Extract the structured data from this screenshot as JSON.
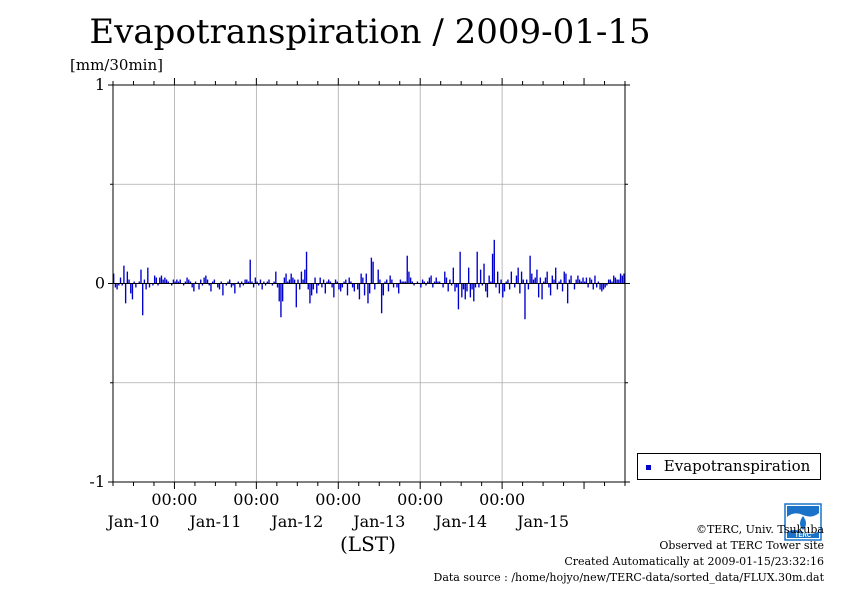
{
  "title": "Evapotranspiration / 2009-01-15",
  "unit_label": "[mm/30min]",
  "chart_data": {
    "type": "bar",
    "xlabel": "(LST)",
    "x_start": "2009-01-09T06:00",
    "interval_minutes": 30,
    "ylim": [
      -1,
      1
    ],
    "yticks": [
      "1",
      "0",
      "-1"
    ],
    "time_tick_label": "00:00",
    "day_labels": [
      "Jan-10",
      "Jan-11",
      "Jan-12",
      "Jan-13",
      "Jan-14",
      "Jan-15"
    ],
    "grid": true,
    "legend_position": "right-bottom",
    "series": [
      {
        "name": "Evapotranspiration",
        "color": "#0000cc",
        "values": [
          0.05,
          -0.02,
          -0.03,
          -0.01,
          0.03,
          -0.01,
          0.09,
          -0.1,
          0.06,
          0.02,
          -0.05,
          -0.08,
          0.01,
          -0.02,
          0.0,
          0.01,
          0.07,
          -0.16,
          0.02,
          -0.03,
          0.08,
          -0.02,
          0.0,
          -0.01,
          0.04,
          0.03,
          -0.01,
          0.03,
          0.04,
          0.02,
          0.03,
          0.02,
          0.01,
          0.0,
          -0.01,
          0.02,
          0.01,
          0.02,
          0.01,
          0.02,
          0.0,
          -0.01,
          0.01,
          0.03,
          0.02,
          0.01,
          -0.02,
          -0.04,
          0.01,
          0.0,
          -0.03,
          0.02,
          -0.01,
          0.03,
          0.04,
          0.02,
          -0.01,
          -0.04,
          0.01,
          0.02,
          0.0,
          -0.02,
          -0.03,
          0.01,
          -0.06,
          0.0,
          -0.01,
          0.01,
          0.02,
          -0.02,
          -0.01,
          -0.05,
          0.0,
          0.01,
          -0.02,
          0.01,
          -0.01,
          0.02,
          0.02,
          0.01,
          0.12,
          0.01,
          -0.02,
          0.03,
          0.01,
          -0.01,
          0.02,
          -0.03,
          0.01,
          -0.01,
          0.01,
          0.02,
          0.0,
          -0.01,
          0.01,
          0.06,
          -0.02,
          -0.09,
          -0.17,
          -0.09,
          0.03,
          0.05,
          0.01,
          0.02,
          0.05,
          0.03,
          0.02,
          -0.12,
          0.02,
          -0.03,
          0.06,
          0.02,
          0.07,
          0.16,
          -0.03,
          -0.1,
          -0.06,
          -0.03,
          0.03,
          -0.05,
          -0.01,
          0.03,
          -0.02,
          0.02,
          -0.05,
          0.01,
          0.02,
          0.01,
          -0.02,
          -0.07,
          0.02,
          0.01,
          -0.03,
          -0.04,
          -0.02,
          0.01,
          0.02,
          -0.06,
          0.03,
          0.01,
          -0.02,
          -0.04,
          0.0,
          -0.03,
          -0.08,
          0.05,
          0.03,
          -0.06,
          0.05,
          -0.1,
          -0.05,
          0.13,
          0.11,
          -0.03,
          0.0,
          0.07,
          0.02,
          -0.15,
          -0.06,
          0.01,
          0.02,
          -0.04,
          0.04,
          0.02,
          -0.02,
          0.0,
          -0.02,
          -0.05,
          0.02,
          0.01,
          0.01,
          0.01,
          0.14,
          0.06,
          0.03,
          0.01,
          -0.01,
          0.0,
          0.01,
          0.0,
          -0.02,
          0.02,
          0.01,
          -0.01,
          0.01,
          0.03,
          0.04,
          -0.02,
          0.01,
          0.03,
          0.01,
          0.01,
          0.0,
          -0.02,
          0.06,
          0.03,
          -0.04,
          0.02,
          -0.01,
          0.08,
          -0.04,
          -0.02,
          -0.13,
          0.16,
          -0.07,
          -0.03,
          -0.08,
          -0.04,
          0.08,
          -0.07,
          -0.03,
          -0.09,
          -0.02,
          0.16,
          -0.02,
          0.07,
          -0.01,
          0.1,
          -0.04,
          -0.07,
          0.04,
          0.01,
          0.15,
          0.22,
          -0.02,
          0.06,
          -0.05,
          0.02,
          -0.07,
          -0.04,
          0.01,
          0.02,
          -0.03,
          0.06,
          0.0,
          -0.02,
          0.04,
          0.08,
          -0.05,
          0.06,
          0.02,
          -0.18,
          0.02,
          -0.03,
          0.14,
          0.05,
          0.02,
          0.03,
          0.07,
          -0.07,
          0.03,
          -0.08,
          0.01,
          0.03,
          0.06,
          -0.02,
          -0.06,
          0.04,
          0.02,
          0.08,
          -0.03,
          0.01,
          0.02,
          -0.04,
          0.06,
          0.05,
          -0.1,
          0.02,
          0.04,
          0.0,
          -0.03,
          0.02,
          0.04,
          0.02,
          0.01,
          0.03,
          0.01,
          0.03,
          -0.02,
          0.03,
          0.02,
          -0.03,
          0.04,
          -0.02,
          0.01,
          -0.03,
          -0.04,
          -0.03,
          -0.02,
          -0.01,
          0.02,
          0.02,
          0.01,
          0.04,
          0.03,
          0.02,
          0.02,
          0.05,
          0.04,
          0.05
        ]
      }
    ]
  },
  "legend": {
    "label": "Evapotranspiration"
  },
  "credits": [
    "©TERC, Univ. Tsukuba",
    "Observed at TERC Tower site",
    "Created Automatically at 2009-01-15/23:32:16",
    "Data source : /home/hojyo/new/TERC-data/sorted_data/FLUX.30m.dat"
  ],
  "logo": {
    "icon": "terc-logo-icon",
    "text": "TERC",
    "color": "#1a73c8"
  }
}
